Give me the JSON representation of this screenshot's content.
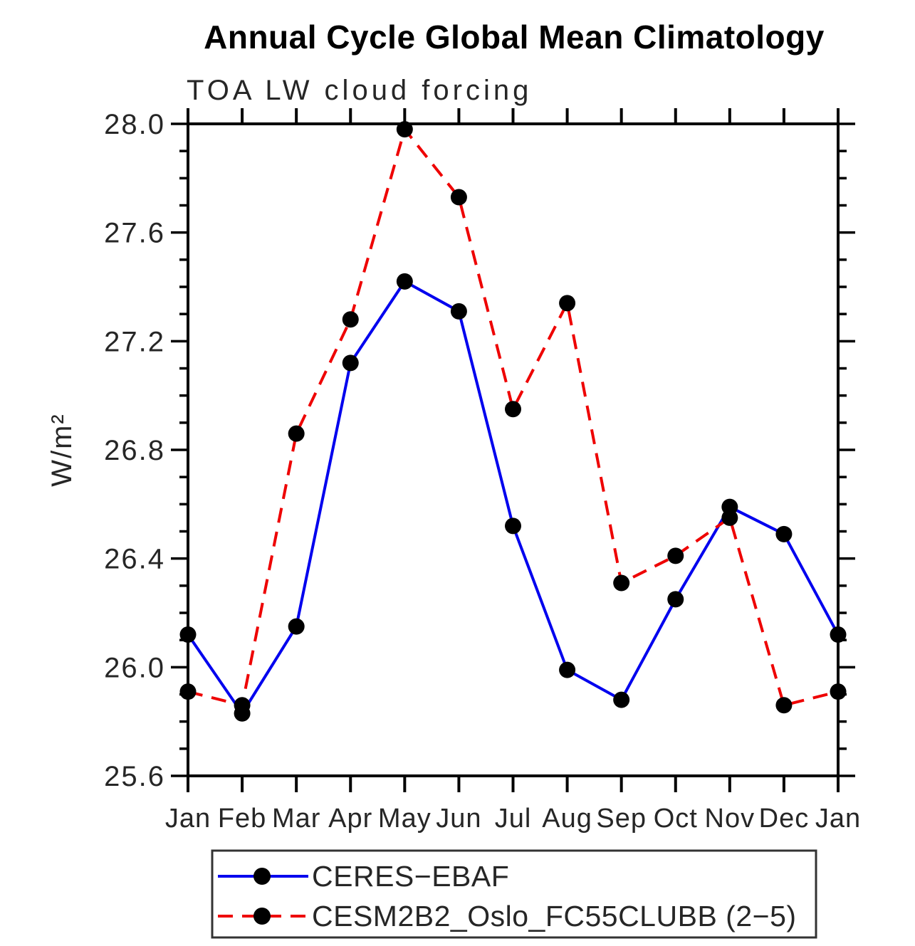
{
  "chart_data": {
    "type": "line",
    "title": "Annual Cycle Global Mean Climatology",
    "subtitle": "TOA LW cloud forcing",
    "ylabel": "W/m²",
    "xlabel": "",
    "categories": [
      "Jan",
      "Feb",
      "Mar",
      "Apr",
      "May",
      "Jun",
      "Jul",
      "Aug",
      "Sep",
      "Oct",
      "Nov",
      "Dec",
      "Jan"
    ],
    "ylim": [
      25.6,
      28.0
    ],
    "y_major_ticks": [
      "28.0",
      "27.6",
      "27.2",
      "26.8",
      "26.4",
      "26.0",
      "25.6"
    ],
    "y_major_values": [
      28.0,
      27.6,
      27.2,
      26.8,
      26.4,
      26.0,
      25.6
    ],
    "y_minor_step": 0.1,
    "grid": false,
    "legend_position": "bottom",
    "axis_color": "#000000",
    "marker_color": "#000000",
    "series": [
      {
        "name": "CERES−EBAF",
        "color": "#0000ee",
        "style": "solid",
        "marker": "filled-circle",
        "values": [
          26.12,
          25.83,
          26.15,
          27.12,
          27.42,
          27.31,
          26.52,
          25.99,
          25.88,
          26.25,
          26.59,
          26.49,
          26.12
        ]
      },
      {
        "name": "CESM2B2_Oslo_FC55CLUBB (2−5)",
        "color": "#ee0000",
        "style": "dashed",
        "marker": "filled-circle",
        "values": [
          25.91,
          25.86,
          26.86,
          27.28,
          27.98,
          27.73,
          26.95,
          27.34,
          26.31,
          26.41,
          26.55,
          25.86,
          25.91
        ]
      }
    ]
  }
}
